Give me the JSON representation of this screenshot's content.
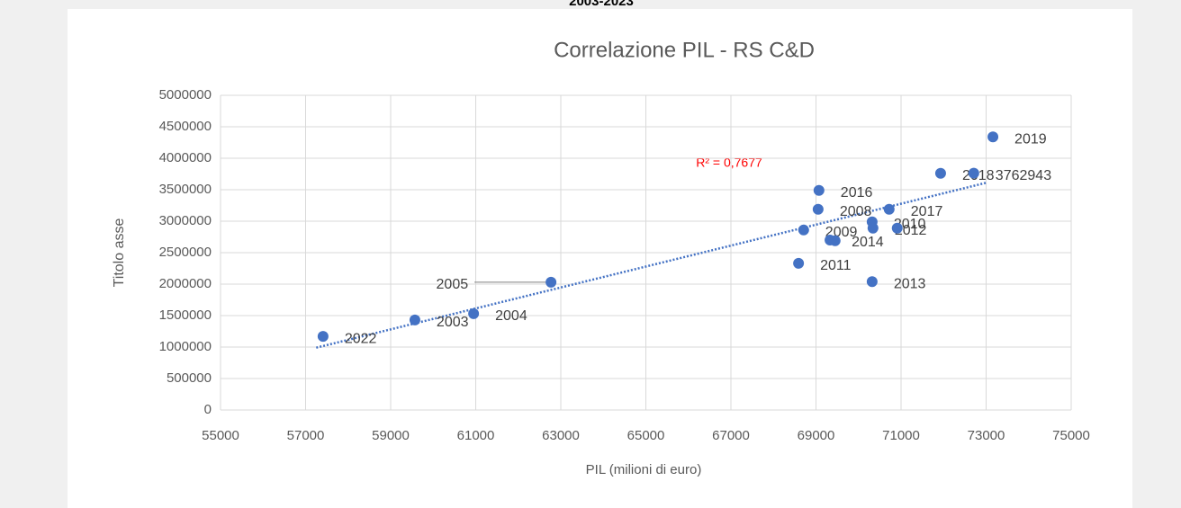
{
  "header_text": "2003-2023",
  "chart_data": {
    "type": "scatter",
    "title": "Correlazione PIL - RS C&D",
    "x_label": "PIL (milioni di euro)",
    "y_label": "Titolo asse",
    "r2_label": "R² = 0,7677",
    "color": "#4472c4",
    "grid": true,
    "xlim": [
      55000,
      75000
    ],
    "ylim": [
      0,
      5000000
    ],
    "xticks": [
      55000,
      57000,
      59000,
      61000,
      63000,
      65000,
      67000,
      69000,
      71000,
      73000,
      75000
    ],
    "yticks": [
      0,
      500000,
      1000000,
      1500000,
      2000000,
      2500000,
      3000000,
      3500000,
      4000000,
      4500000,
      5000000
    ],
    "x": [
      59570,
      60950,
      62770,
      69050,
      68710,
      70320,
      68590,
      70340,
      70320,
      69330,
      69070,
      70720,
      71930,
      72710,
      73160,
      57410,
      70910,
      69450
    ],
    "values": [
      1430000,
      1530000,
      2030000,
      3190000,
      2860000,
      2990000,
      2330000,
      2890000,
      2040000,
      2700000,
      3490000,
      3190000,
      3760000,
      3762943,
      4340000,
      1170000,
      2890000,
      2690000
    ],
    "value_labels": [
      "2003",
      "2004",
      "2005",
      "2008",
      "2009",
      "2010",
      "2011",
      "2012",
      "2013",
      "2014",
      "2016",
      "2017",
      "2018",
      "3762943",
      "2019",
      "2022",
      null,
      null
    ],
    "trendline": {
      "color": "#4472c4",
      "x": [
        57250,
        73000
      ],
      "y": [
        990000,
        3610000
      ]
    }
  }
}
